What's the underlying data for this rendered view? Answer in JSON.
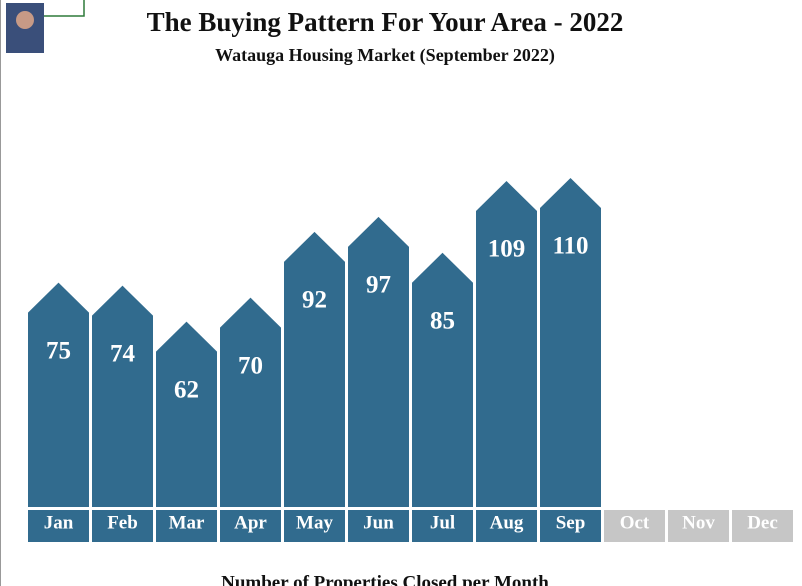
{
  "chart_data": {
    "type": "house-bar",
    "title": "The Buying Pattern For Your Area - 2022",
    "subtitle": "Watauga Housing Market (September 2022)",
    "x_label": "Number of Properties Closed per Month",
    "categories": [
      "Jan",
      "Feb",
      "Mar",
      "Apr",
      "May",
      "Jun",
      "Jul",
      "Aug",
      "Sep",
      "Oct",
      "Nov",
      "Dec"
    ],
    "values": [
      75,
      74,
      62,
      70,
      92,
      97,
      85,
      109,
      110,
      null,
      null,
      null
    ],
    "color": "#316b8e",
    "empty_color": "#c6c6c6"
  }
}
